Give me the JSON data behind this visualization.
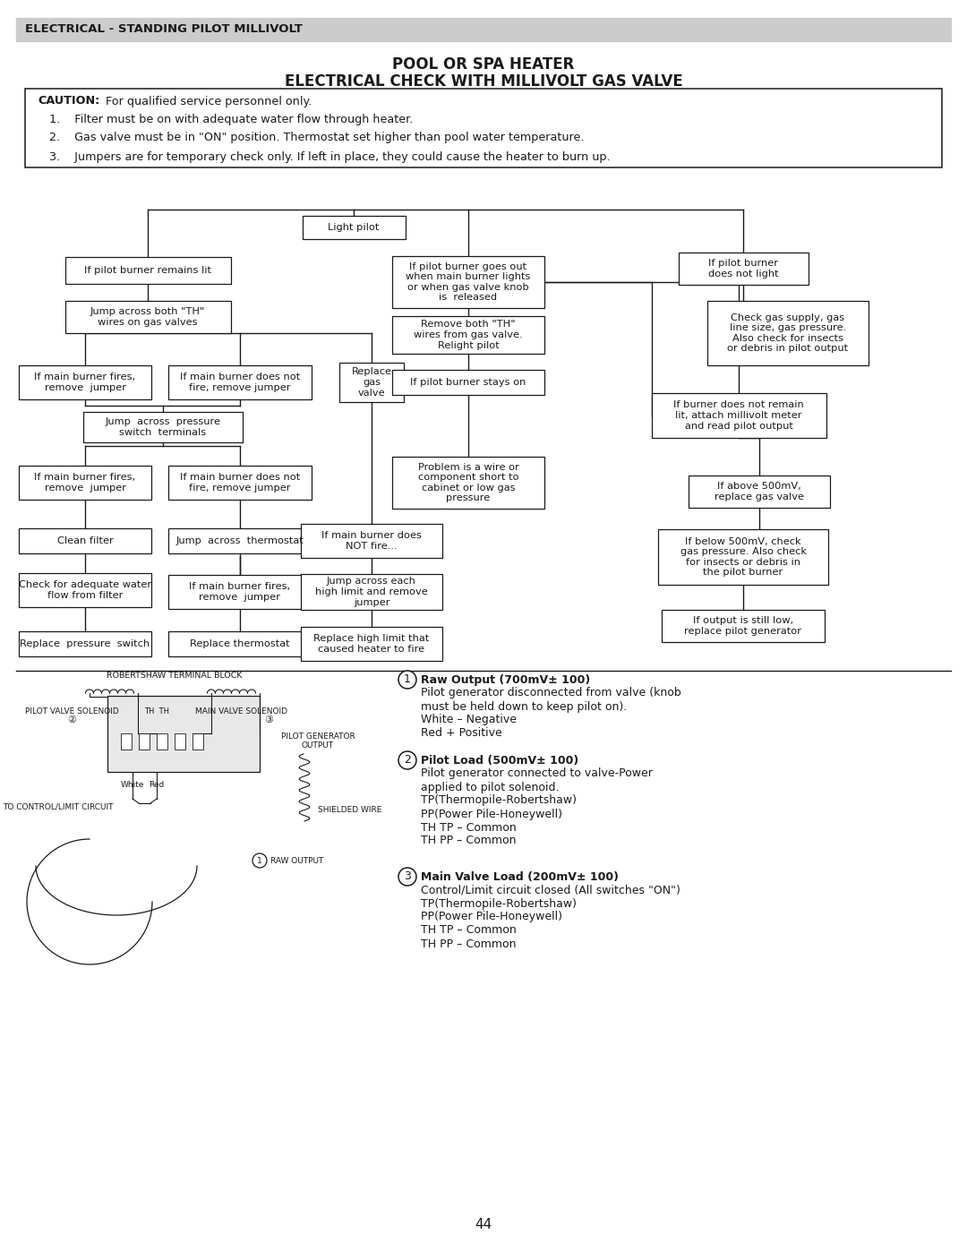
{
  "page_bg": "#ffffff",
  "header_bg": "#cccccc",
  "header_text": "ELECTRICAL - STANDING PILOT MILLIVOLT",
  "title1": "POOL OR SPA HEATER",
  "title2": "ELECTRICAL CHECK WITH MILLIVOLT GAS VALVE",
  "footer_page": "44",
  "box_border": "#1a1a1a",
  "line_color": "#1a1a1a",
  "text_color": "#1a1a1a",
  "boxes": {
    "light_pilot": [
      395,
      1143,
      115,
      26,
      "Light pilot"
    ],
    "remains_lit": [
      165,
      1095,
      185,
      30,
      "If pilot burner remains lit"
    ],
    "goes_out": [
      523,
      1082,
      170,
      58,
      "If pilot burner goes out\nwhen main burner lights\nor when gas valve knob\nis  released"
    ],
    "not_light": [
      830,
      1097,
      145,
      36,
      "If pilot burner\ndoes not light"
    ],
    "jump_th": [
      165,
      1043,
      185,
      36,
      "Jump across both \"TH\"\nwires on gas valves"
    ],
    "remove_th": [
      523,
      1023,
      170,
      42,
      "Remove both \"TH\"\nwires from gas valve.\nRelight pilot"
    ],
    "check_gas": [
      880,
      1025,
      180,
      72,
      "Check gas supply, gas\nline size, gas pressure.\nAlso check for insects\nor debris in pilot output"
    ],
    "fires1": [
      95,
      970,
      148,
      38,
      "If main burner fires,\nremove  jumper"
    ],
    "not_fire1": [
      268,
      970,
      160,
      38,
      "If main burner does not\nfire, remove jumper"
    ],
    "replace_valve": [
      415,
      970,
      72,
      44,
      "Replace\ngas\nvalve"
    ],
    "stays_on": [
      523,
      970,
      170,
      28,
      "If pilot burner stays on"
    ],
    "jump_pressure": [
      182,
      920,
      178,
      34,
      "Jump  across  pressure\nswitch  terminals"
    ],
    "burner_not_remain": [
      825,
      933,
      195,
      50,
      "If burner does not remain\nlit, attach millivolt meter\nand read pilot output"
    ],
    "fires2": [
      95,
      858,
      148,
      38,
      "If main burner fires,\nremove  jumper"
    ],
    "not_fire2": [
      268,
      858,
      160,
      38,
      "If main burner does not\nfire, remove jumper"
    ],
    "problem_wire": [
      523,
      858,
      170,
      58,
      "Problem is a wire or\ncomponent short to\ncabinet or low gas\npressure"
    ],
    "above_500": [
      848,
      848,
      158,
      36,
      "If above 500mV,\nreplace gas valve"
    ],
    "clean_filter": [
      95,
      793,
      148,
      28,
      "Clean filter"
    ],
    "jump_thermostat": [
      268,
      793,
      160,
      28,
      "Jump  across  thermostat"
    ],
    "not_fire3": [
      415,
      793,
      158,
      38,
      "If main burner does\nNOT fire..."
    ],
    "check_water": [
      95,
      738,
      148,
      38,
      "Check for adequate water\nflow from filter"
    ],
    "fires3": [
      268,
      736,
      160,
      38,
      "If main burner fires,\nremove  jumper"
    ],
    "jump_highlimit": [
      415,
      736,
      158,
      40,
      "Jump across each\nhigh limit and remove\njumper"
    ],
    "below_500": [
      830,
      775,
      190,
      62,
      "If below 500mV, check\ngas pressure. Also check\nfor insects or debris in\nthe pilot burner"
    ],
    "replace_pressure": [
      95,
      678,
      148,
      28,
      "Replace  pressure  switch"
    ],
    "replace_thermostat": [
      268,
      678,
      160,
      28,
      "Replace thermostat"
    ],
    "replace_highlimit": [
      415,
      678,
      158,
      38,
      "Replace high limit that\ncaused heater to fire"
    ],
    "still_low": [
      830,
      698,
      182,
      36,
      "If output is still low,\nreplace pilot generator"
    ]
  }
}
